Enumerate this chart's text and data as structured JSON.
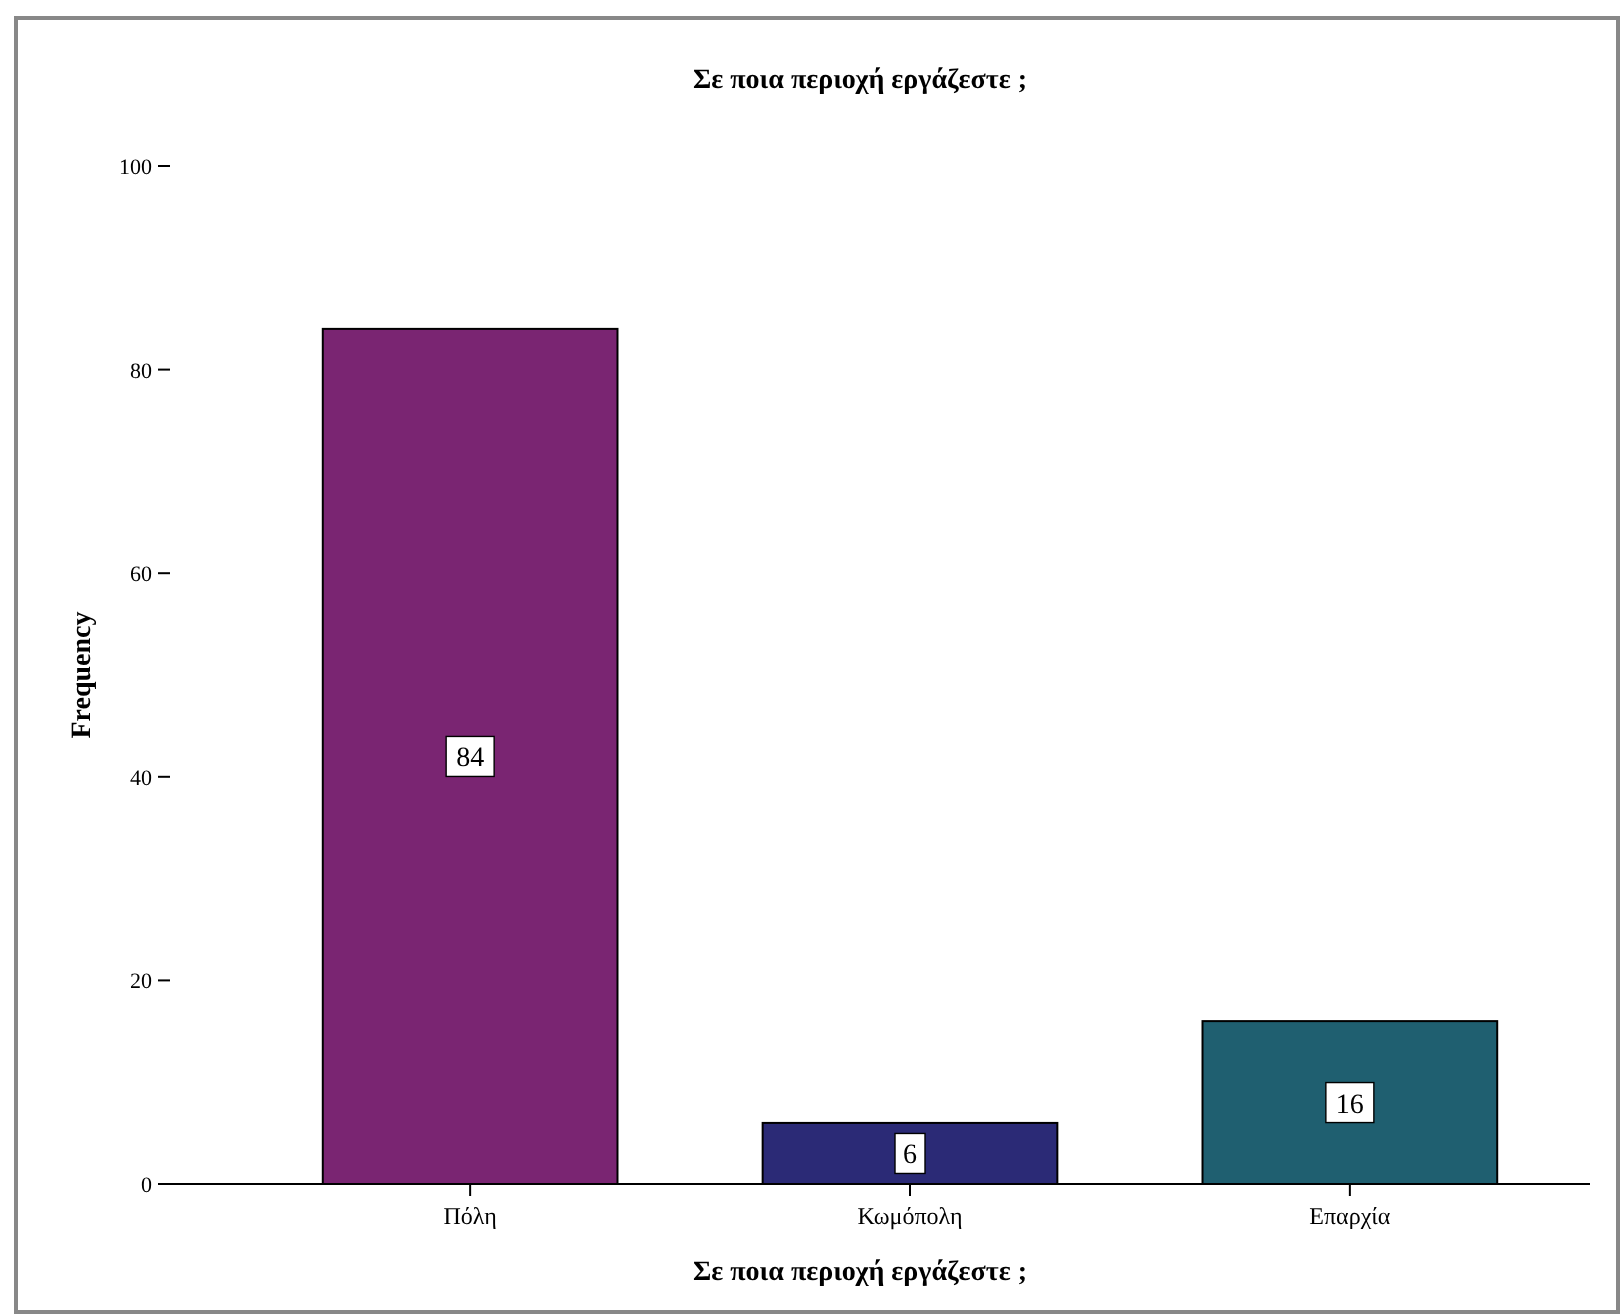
{
  "chart_data": {
    "type": "bar",
    "title": "Σε ποια περιοχή εργάζεστε ;",
    "xlabel": "Σε ποια περιοχή εργάζεστε ;",
    "ylabel": "Frequency",
    "categories": [
      "Πόλη",
      "Κωμόπολη",
      "Επαρχία"
    ],
    "values": [
      84,
      6,
      16
    ],
    "colors": [
      "#7a2572",
      "#2b2a76",
      "#1f5f70"
    ],
    "ylim": [
      0,
      100
    ],
    "yticks": [
      0,
      20,
      40,
      60,
      80,
      100
    ],
    "data_labels": true,
    "grid": false
  }
}
